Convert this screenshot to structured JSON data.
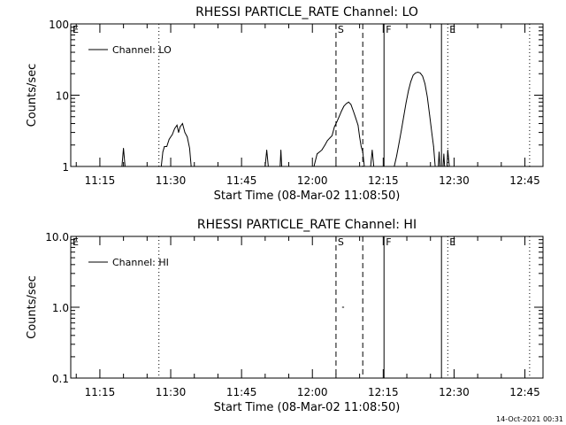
{
  "footer_timestamp": "14-Oct-2021 00:31",
  "chart_data": [
    {
      "type": "line",
      "title": "RHESSI PARTICLE_RATE Channel: LO",
      "xlabel": "Start Time (08-Mar-02 11:08:50)",
      "ylabel": "Counts/sec",
      "yscale": "log",
      "ylim": [
        1,
        100
      ],
      "xlim": [
        "11:08:50",
        "12:48:50"
      ],
      "y_ticks": [
        "1",
        "10",
        "100"
      ],
      "x_ticks": [
        "11:15",
        "11:30",
        "11:45",
        "12:00",
        "12:15",
        "12:30",
        "12:45"
      ],
      "legend": {
        "entry": "Channel: LO",
        "position": "top-left"
      },
      "markers": [
        {
          "label": "E",
          "time": "11:08:50",
          "style": "dotted"
        },
        {
          "label": "",
          "time": "11:27:30",
          "style": "dotted"
        },
        {
          "label": "S",
          "time": "12:05:00",
          "style": "dashed"
        },
        {
          "label": "",
          "time": "12:10:40",
          "style": "dashed"
        },
        {
          "label": "F",
          "time": "12:15:10",
          "style": "solid"
        },
        {
          "label": "",
          "time": "12:27:20",
          "style": "solid"
        },
        {
          "label": "E",
          "time": "12:28:40",
          "style": "dotted"
        },
        {
          "label": "",
          "time": "12:46:00",
          "style": "dotted"
        }
      ],
      "series": [
        {
          "name": "Channel: LO",
          "points": [
            [
              "11:19:40",
              1
            ],
            [
              "11:20:00",
              1.8
            ],
            [
              "11:20:20",
              1
            ],
            [
              "11:28:00",
              1
            ],
            [
              "11:28:20",
              1.6
            ],
            [
              "11:28:40",
              1.9
            ],
            [
              "11:29:10",
              1.9
            ],
            [
              "11:29:40",
              2.4
            ],
            [
              "11:30:00",
              2.6
            ],
            [
              "11:30:20",
              2.8
            ],
            [
              "11:30:50",
              3.4
            ],
            [
              "11:31:20",
              3.8
            ],
            [
              "11:31:40",
              3.0
            ],
            [
              "11:32:00",
              3.6
            ],
            [
              "11:32:30",
              4.0
            ],
            [
              "11:33:00",
              3.0
            ],
            [
              "11:33:30",
              2.6
            ],
            [
              "11:34:00",
              1.8
            ],
            [
              "11:34:20",
              1
            ],
            [
              "11:50:00",
              1
            ],
            [
              "11:50:20",
              1.7
            ],
            [
              "11:50:40",
              1
            ],
            [
              "11:53:10",
              1
            ],
            [
              "11:53:20",
              1.7
            ],
            [
              "11:53:30",
              1
            ],
            [
              "12:00:20",
              1
            ],
            [
              "12:01:00",
              1.5
            ],
            [
              "12:02:00",
              1.7
            ],
            [
              "12:02:40",
              2.0
            ],
            [
              "12:03:10",
              2.3
            ],
            [
              "12:03:40",
              2.5
            ],
            [
              "12:04:10",
              2.7
            ],
            [
              "12:04:40",
              3.6
            ],
            [
              "12:05:10",
              4.2
            ],
            [
              "12:05:40",
              5.0
            ],
            [
              "12:06:10",
              6.0
            ],
            [
              "12:06:40",
              7.0
            ],
            [
              "12:07:10",
              7.6
            ],
            [
              "12:07:40",
              8.0
            ],
            [
              "12:08:10",
              7.4
            ],
            [
              "12:08:40",
              6.0
            ],
            [
              "12:09:10",
              4.8
            ],
            [
              "12:09:40",
              3.8
            ],
            [
              "12:10:00",
              2.6
            ],
            [
              "12:10:20",
              1.9
            ],
            [
              "12:10:40",
              1.6
            ],
            [
              "12:11:00",
              1
            ],
            [
              "12:12:20",
              1
            ],
            [
              "12:12:40",
              1.7
            ],
            [
              "12:13:00",
              1
            ],
            [
              "12:17:20",
              1
            ],
            [
              "12:17:50",
              1.4
            ],
            [
              "12:18:20",
              2.1
            ],
            [
              "12:18:50",
              3.2
            ],
            [
              "12:19:20",
              5.0
            ],
            [
              "12:19:50",
              7.8
            ],
            [
              "12:20:20",
              11.5
            ],
            [
              "12:20:50",
              15.5
            ],
            [
              "12:21:20",
              19.0
            ],
            [
              "12:21:50",
              20.5
            ],
            [
              "12:22:20",
              21.0
            ],
            [
              "12:22:50",
              20.5
            ],
            [
              "12:23:20",
              18.5
            ],
            [
              "12:23:50",
              14.5
            ],
            [
              "12:24:20",
              9.5
            ],
            [
              "12:24:50",
              5.2
            ],
            [
              "12:25:20",
              2.8
            ],
            [
              "12:25:40",
              1.9
            ],
            [
              "12:26:00",
              1
            ],
            [
              "12:26:40",
              1
            ],
            [
              "12:26:50",
              1.6
            ],
            [
              "12:27:00",
              1
            ],
            [
              "12:27:40",
              1
            ],
            [
              "12:27:50",
              1.5
            ],
            [
              "12:28:00",
              1
            ],
            [
              "12:28:30",
              1
            ],
            [
              "12:28:40",
              1.7
            ],
            [
              "12:29:00",
              1
            ]
          ]
        }
      ]
    },
    {
      "type": "line",
      "title": "RHESSI PARTICLE_RATE Channel: HI",
      "xlabel": "Start Time (08-Mar-02 11:08:50)",
      "ylabel": "Counts/sec",
      "yscale": "log",
      "ylim": [
        0.1,
        10
      ],
      "xlim": [
        "11:08:50",
        "12:48:50"
      ],
      "y_ticks": [
        "0.1",
        "1.0",
        "10.0"
      ],
      "x_ticks": [
        "11:15",
        "11:30",
        "11:45",
        "12:00",
        "12:15",
        "12:30",
        "12:45"
      ],
      "legend": {
        "entry": "Channel: HI",
        "position": "top-left"
      },
      "markers": [
        {
          "label": "E",
          "time": "11:08:50",
          "style": "dotted"
        },
        {
          "label": "",
          "time": "11:27:30",
          "style": "dotted"
        },
        {
          "label": "S",
          "time": "12:05:00",
          "style": "dashed"
        },
        {
          "label": "",
          "time": "12:10:40",
          "style": "dashed"
        },
        {
          "label": "F",
          "time": "12:15:10",
          "style": "solid"
        },
        {
          "label": "",
          "time": "12:27:20",
          "style": "solid"
        },
        {
          "label": "E",
          "time": "12:28:40",
          "style": "dotted"
        },
        {
          "label": "",
          "time": "12:46:00",
          "style": "dotted"
        }
      ],
      "series": [
        {
          "name": "Channel: HI",
          "points": [
            [
              "12:06:20",
              1.0
            ],
            [
              "12:06:40",
              1.0
            ]
          ]
        }
      ]
    }
  ]
}
